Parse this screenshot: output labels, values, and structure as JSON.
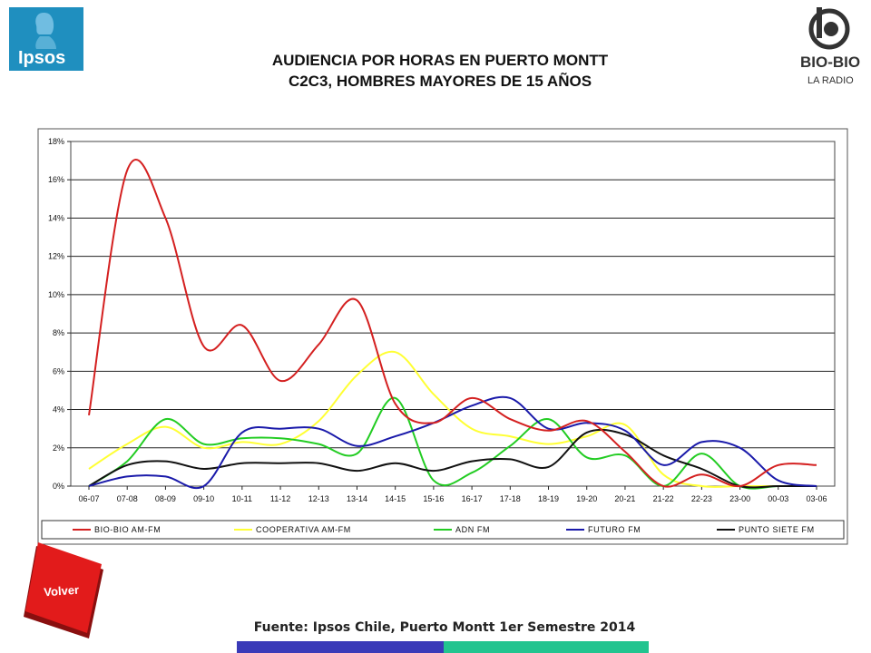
{
  "header": {
    "title_line1": "AUDIENCIA POR HORAS EN PUERTO MONTT",
    "title_line2": "C2C3, HOMBRES MAYORES DE 15 AÑOS",
    "left_logo_text": "Ipsos",
    "right_logo_text": "BIO-BIO",
    "right_logo_subtext": "LA RADIO"
  },
  "footer": {
    "source": "Fuente: Ipsos Chile, Puerto Montt 1er Semestre 2014",
    "back_button": "Volver"
  },
  "colors": {
    "ipsos_blue": "#1f8fbf",
    "biobio_gray": "#333333",
    "volver_red": "#e21b1b"
  },
  "chart_data": {
    "type": "line",
    "title": "",
    "xlabel": "",
    "ylabel": "",
    "ylim": [
      0,
      18
    ],
    "y_ticks": [
      "0%",
      "2%",
      "4%",
      "6%",
      "8%",
      "10%",
      "12%",
      "14%",
      "16%",
      "18%"
    ],
    "grid": true,
    "legend_position": "bottom",
    "categories": [
      "06-07",
      "07-08",
      "08-09",
      "09-10",
      "10-11",
      "11-12",
      "12-13",
      "13-14",
      "14-15",
      "15-16",
      "16-17",
      "17-18",
      "18-19",
      "19-20",
      "20-21",
      "21-22",
      "22-23",
      "23-00",
      "00-03",
      "03-06"
    ],
    "series": [
      {
        "name": "BIO-BIO AM-FM",
        "color": "#d42020",
        "values": [
          3.7,
          16.5,
          14.0,
          7.3,
          8.4,
          5.5,
          7.4,
          9.7,
          4.3,
          3.3,
          4.6,
          3.5,
          2.9,
          3.4,
          1.8,
          0.0,
          0.6,
          0.0,
          1.1,
          1.1
        ]
      },
      {
        "name": "COOPERATIVA AM-FM",
        "color": "#ffff33",
        "values": [
          0.9,
          2.2,
          3.1,
          2.0,
          2.3,
          2.2,
          3.4,
          5.8,
          7.0,
          4.8,
          3.0,
          2.6,
          2.2,
          2.6,
          3.2,
          0.6,
          0.0,
          0.0,
          0.0,
          0.0
        ]
      },
      {
        "name": "ADN FM",
        "color": "#22cc22",
        "values": [
          0.0,
          1.3,
          3.5,
          2.2,
          2.5,
          2.5,
          2.2,
          1.7,
          4.6,
          0.3,
          0.7,
          2.1,
          3.5,
          1.5,
          1.6,
          0.0,
          1.7,
          0.0,
          0.0,
          0.0
        ]
      },
      {
        "name": "FUTURO FM",
        "color": "#1a1aaa",
        "values": [
          0.0,
          0.5,
          0.5,
          0.0,
          2.8,
          3.0,
          3.0,
          2.1,
          2.6,
          3.3,
          4.2,
          4.6,
          3.0,
          3.3,
          2.9,
          1.1,
          2.3,
          2.0,
          0.3,
          0.0
        ]
      },
      {
        "name": "PUNTO SIETE FM",
        "color": "#111111",
        "values": [
          0.0,
          1.1,
          1.3,
          0.9,
          1.2,
          1.2,
          1.2,
          0.8,
          1.2,
          0.8,
          1.3,
          1.4,
          1.0,
          2.8,
          2.7,
          1.6,
          0.9,
          0.0,
          0.0,
          0.0
        ]
      }
    ]
  }
}
